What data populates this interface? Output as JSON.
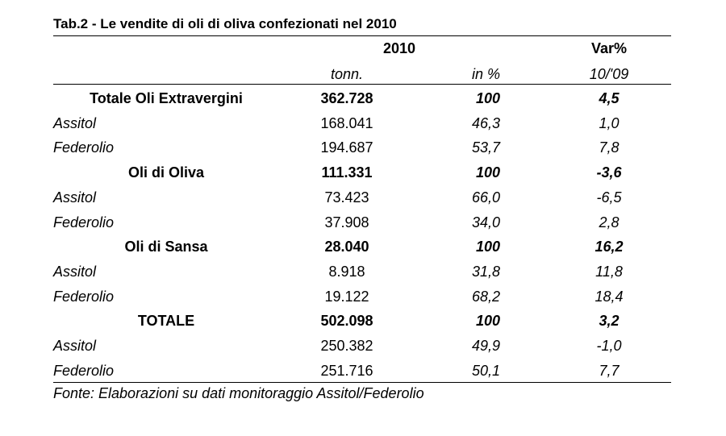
{
  "title": "Tab.2 - Le vendite di oli di oliva confezionati nel 2010",
  "header": {
    "year": "2010",
    "var": "Var%",
    "sub_tonn": "tonn.",
    "sub_pct": "in %",
    "sub_var": "10/'09"
  },
  "rows": [
    {
      "label": "Totale Oli Extravergini",
      "tonn": "362.728",
      "pct": "100",
      "var": "4,5",
      "group": true
    },
    {
      "label": "Assitol",
      "tonn": "168.041",
      "pct": "46,3",
      "var": "1,0",
      "group": false
    },
    {
      "label": "Federolio",
      "tonn": "194.687",
      "pct": "53,7",
      "var": "7,8",
      "group": false
    },
    {
      "label": "Oli di Oliva",
      "tonn": "111.331",
      "pct": "100",
      "var": "-3,6",
      "group": true
    },
    {
      "label": "Assitol",
      "tonn": "73.423",
      "pct": "66,0",
      "var": "-6,5",
      "group": false
    },
    {
      "label": "Federolio",
      "tonn": "37.908",
      "pct": "34,0",
      "var": "2,8",
      "group": false
    },
    {
      "label": "Oli di Sansa",
      "tonn": "28.040",
      "pct": "100",
      "var": "16,2",
      "group": true
    },
    {
      "label": "Assitol",
      "tonn": "8.918",
      "pct": "31,8",
      "var": "11,8",
      "group": false
    },
    {
      "label": "Federolio",
      "tonn": "19.122",
      "pct": "68,2",
      "var": "18,4",
      "group": false
    },
    {
      "label": "TOTALE",
      "tonn": "502.098",
      "pct": "100",
      "var": "3,2",
      "group": true
    },
    {
      "label": "Assitol",
      "tonn": "250.382",
      "pct": "49,9",
      "var": "-1,0",
      "group": false
    },
    {
      "label": "Federolio",
      "tonn": "251.716",
      "pct": "50,1",
      "var": "7,7",
      "group": false
    }
  ],
  "source": "Fonte: Elaborazioni su dati monitoraggio Assitol/Federolio"
}
